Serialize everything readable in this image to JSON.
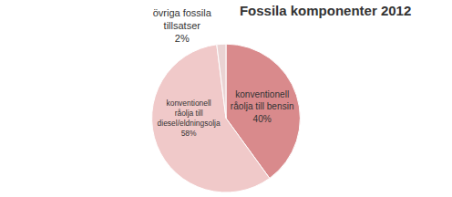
{
  "chart_data": {
    "type": "pie",
    "title": "Fossila komponenter 2012",
    "categories": [
      "konventionell råolja till bensin",
      "konventionell råolja till diesel/eldningsolja",
      "övriga fossila tillsatser"
    ],
    "values": [
      40,
      58,
      2
    ],
    "value_labels": [
      "40%",
      "58%",
      "2%"
    ],
    "colors": [
      "#d98a8c",
      "#f0c9c9",
      "#ead3d3"
    ],
    "data_labels": true,
    "legend": false
  }
}
